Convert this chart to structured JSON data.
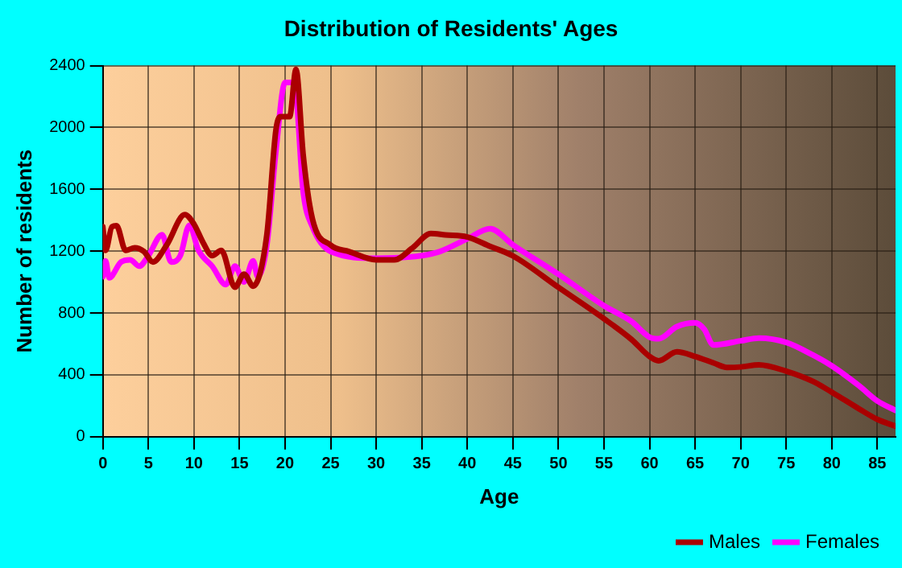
{
  "chart_data": {
    "type": "line",
    "title": "Distribution of Residents' Ages",
    "xlabel": "Age",
    "ylabel": "Number of residents",
    "xlim": [
      0,
      87
    ],
    "xticks": [
      0,
      5,
      10,
      15,
      20,
      25,
      30,
      35,
      40,
      45,
      50,
      55,
      60,
      65,
      70,
      75,
      80,
      85
    ],
    "ylim": [
      0,
      2400
    ],
    "yticks": [
      0,
      400,
      800,
      1200,
      1600,
      2000,
      2400
    ],
    "grid": true,
    "legend": "bottom right",
    "marker": "none",
    "line_style": "solid",
    "series": [
      {
        "name": "Males",
        "color": "#aa0000",
        "x": [
          0,
          0.3,
          1,
          1.5,
          2.5,
          3.5,
          4.5,
          5.5,
          7,
          9,
          10,
          11,
          12,
          13,
          14.5,
          15.5,
          16.5,
          18,
          19,
          19.5,
          20.5,
          21.2,
          22,
          23,
          25,
          27,
          30,
          32,
          34,
          36,
          37.6,
          40,
          42.5,
          45,
          50,
          55,
          58,
          60,
          61,
          63,
          65,
          67,
          68.5,
          70,
          72,
          75,
          78,
          80,
          83,
          85,
          87
        ],
        "values": [
          1358,
          1205,
          1358,
          1365,
          1205,
          1222,
          1198,
          1130,
          1239,
          1436,
          1375,
          1256,
          1171,
          1205,
          967,
          1052,
          974,
          1307,
          1986,
          2070,
          2070,
          2376,
          1816,
          1409,
          1239,
          1198,
          1144,
          1144,
          1222,
          1314,
          1305,
          1292,
          1231,
          1170,
          966,
          763,
          630,
          519,
          491,
          549,
          519,
          478,
          448,
          451,
          465,
          424,
          356,
          288,
          180,
          112,
          68
        ]
      },
      {
        "name": "Females",
        "color": "#ff00ff",
        "x": [
          0,
          0.3,
          0.7,
          2,
          3,
          4,
          5,
          6.5,
          7.5,
          8.5,
          9.5,
          10.5,
          12,
          13.5,
          14.5,
          15.5,
          16.5,
          17,
          18,
          19,
          20,
          21,
          22,
          23,
          25,
          30,
          35,
          37,
          40,
          42.5,
          45,
          50,
          55,
          58,
          60,
          61,
          63,
          65,
          66,
          67,
          70,
          72,
          75,
          78,
          80,
          83,
          85,
          87
        ],
        "values": [
          1035,
          1137,
          1028,
          1130,
          1144,
          1103,
          1171,
          1307,
          1130,
          1171,
          1368,
          1205,
          1103,
          984,
          1103,
          1001,
          1137,
          1035,
          1239,
          1850,
          2291,
          2291,
          1578,
          1358,
          1198,
          1154,
          1171,
          1198,
          1280,
          1346,
          1241,
          1051,
          847,
          746,
          644,
          634,
          712,
          736,
          695,
          593,
          620,
          638,
          610,
          526,
          458,
          329,
          231,
          170
        ]
      }
    ]
  }
}
